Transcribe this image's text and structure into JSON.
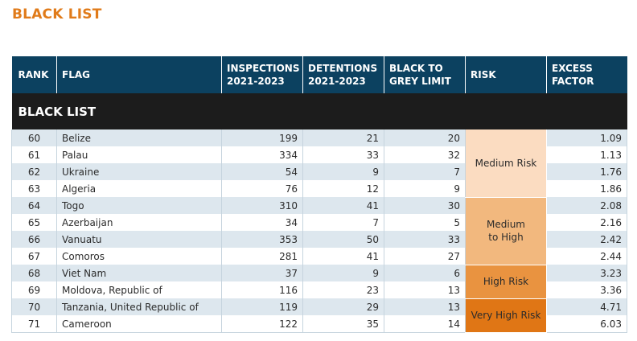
{
  "page": {
    "title": "BLACK LIST"
  },
  "colors": {
    "accent": "#e07b1a",
    "header_bg": "#0c4160",
    "section_bg": "#1c1c1c",
    "row_alt": "#dde7ee",
    "risk_medium": "#fbdcc1",
    "risk_medium_to_high": "#f2b87e",
    "risk_high": "#e99340",
    "risk_very_high": "#e07615"
  },
  "table": {
    "headers": {
      "rank": "RANK",
      "flag": "FLAG",
      "inspections": "INSPECTIONS\n2021-2023",
      "detentions": "DETENTIONS\n2021-2023",
      "black_to_grey": "BLACK TO\nGREY LIMIT",
      "risk": "RISK",
      "excess": "EXCESS\nFACTOR"
    },
    "section_label": "BLACK LIST",
    "risk_groups": {
      "medium": "Medium Risk",
      "medium_to_high": "Medium\nto High",
      "high": "High Risk",
      "very_high": "Very High Risk"
    },
    "rows": [
      {
        "rank": "60",
        "flag": "Belize",
        "inspections": "199",
        "detentions": "21",
        "limit": "20",
        "excess": "1.09"
      },
      {
        "rank": "61",
        "flag": "Palau",
        "inspections": "334",
        "detentions": "33",
        "limit": "32",
        "excess": "1.13"
      },
      {
        "rank": "62",
        "flag": "Ukraine",
        "inspections": "54",
        "detentions": "9",
        "limit": "7",
        "excess": "1.76"
      },
      {
        "rank": "63",
        "flag": "Algeria",
        "inspections": "76",
        "detentions": "12",
        "limit": "9",
        "excess": "1.86"
      },
      {
        "rank": "64",
        "flag": "Togo",
        "inspections": "310",
        "detentions": "41",
        "limit": "30",
        "excess": "2.08"
      },
      {
        "rank": "65",
        "flag": "Azerbaijan",
        "inspections": "34",
        "detentions": "7",
        "limit": "5",
        "excess": "2.16"
      },
      {
        "rank": "66",
        "flag": "Vanuatu",
        "inspections": "353",
        "detentions": "50",
        "limit": "33",
        "excess": "2.42"
      },
      {
        "rank": "67",
        "flag": "Comoros",
        "inspections": "281",
        "detentions": "41",
        "limit": "27",
        "excess": "2.44"
      },
      {
        "rank": "68",
        "flag": "Viet Nam",
        "inspections": "37",
        "detentions": "9",
        "limit": "6",
        "excess": "3.23"
      },
      {
        "rank": "69",
        "flag": "Moldova, Republic of",
        "inspections": "116",
        "detentions": "23",
        "limit": "13",
        "excess": "3.36"
      },
      {
        "rank": "70",
        "flag": "Tanzania, United Republic of",
        "inspections": "119",
        "detentions": "29",
        "limit": "13",
        "excess": "4.71"
      },
      {
        "rank": "71",
        "flag": "Cameroon",
        "inspections": "122",
        "detentions": "35",
        "limit": "14",
        "excess": "6.03"
      }
    ]
  }
}
